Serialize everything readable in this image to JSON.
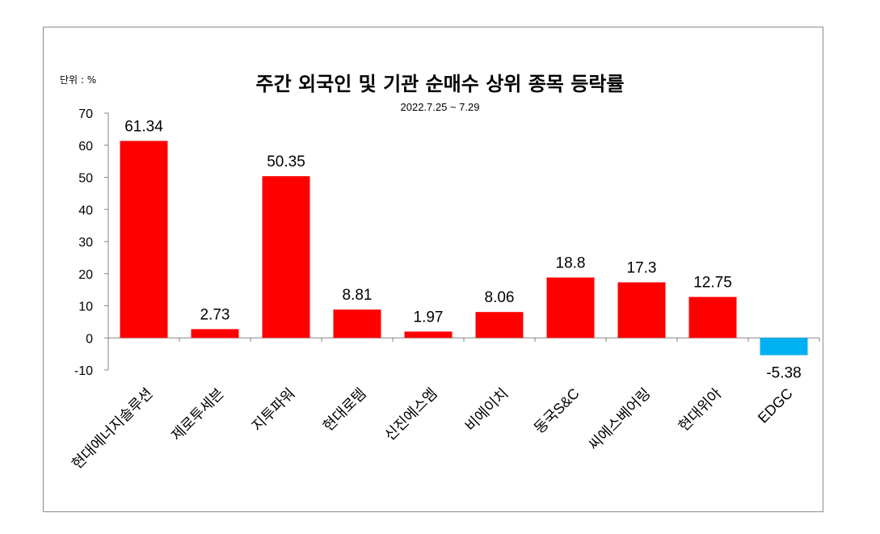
{
  "chart_data": {
    "type": "bar",
    "title": "주간 외국인 및 기관  순매수 상위 종목 등락률",
    "subtitle": "2022.7.25 ~ 7.29",
    "unit_label": "단위 : %",
    "categories": [
      "현대에너지솔루션",
      "제로투세븐",
      "지투파워",
      "현대로템",
      "신진에스엠",
      "비에이치",
      "동국S&C",
      "씨에스베어링",
      "현대위아",
      "EDGC"
    ],
    "values": [
      61.34,
      2.73,
      50.35,
      8.81,
      1.97,
      8.06,
      18.8,
      17.3,
      12.75,
      -5.38
    ],
    "data_labels": [
      "61.34",
      "2.73",
      "50.35",
      "8.81",
      "1.97",
      "8.06",
      "18.8",
      "17.3",
      "12.75",
      "-5.38"
    ],
    "ylim": [
      -10,
      70
    ],
    "yticks": [
      -10,
      0,
      10,
      20,
      30,
      40,
      50,
      60,
      70
    ],
    "positive_color": "#ff0000",
    "negative_color": "#00b0f0",
    "grid": false,
    "legend": "none"
  }
}
